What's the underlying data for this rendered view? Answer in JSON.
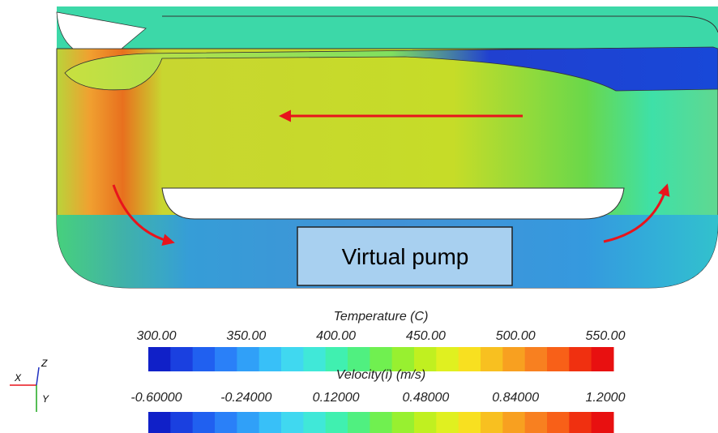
{
  "pump_label": "Virtual pump",
  "colorbars": [
    {
      "title": "Temperature (C)",
      "ticks": [
        "300.00",
        "350.00",
        "400.00",
        "450.00",
        "500.00",
        "550.00"
      ]
    },
    {
      "title": "Velocity(i) (m/s)",
      "ticks": [
        "-0.60000",
        "-0.24000",
        "0.12000",
        "0.48000",
        "0.84000",
        "1.2000"
      ]
    }
  ],
  "axes": {
    "x": "X",
    "y": "Y",
    "z": "Z"
  }
}
